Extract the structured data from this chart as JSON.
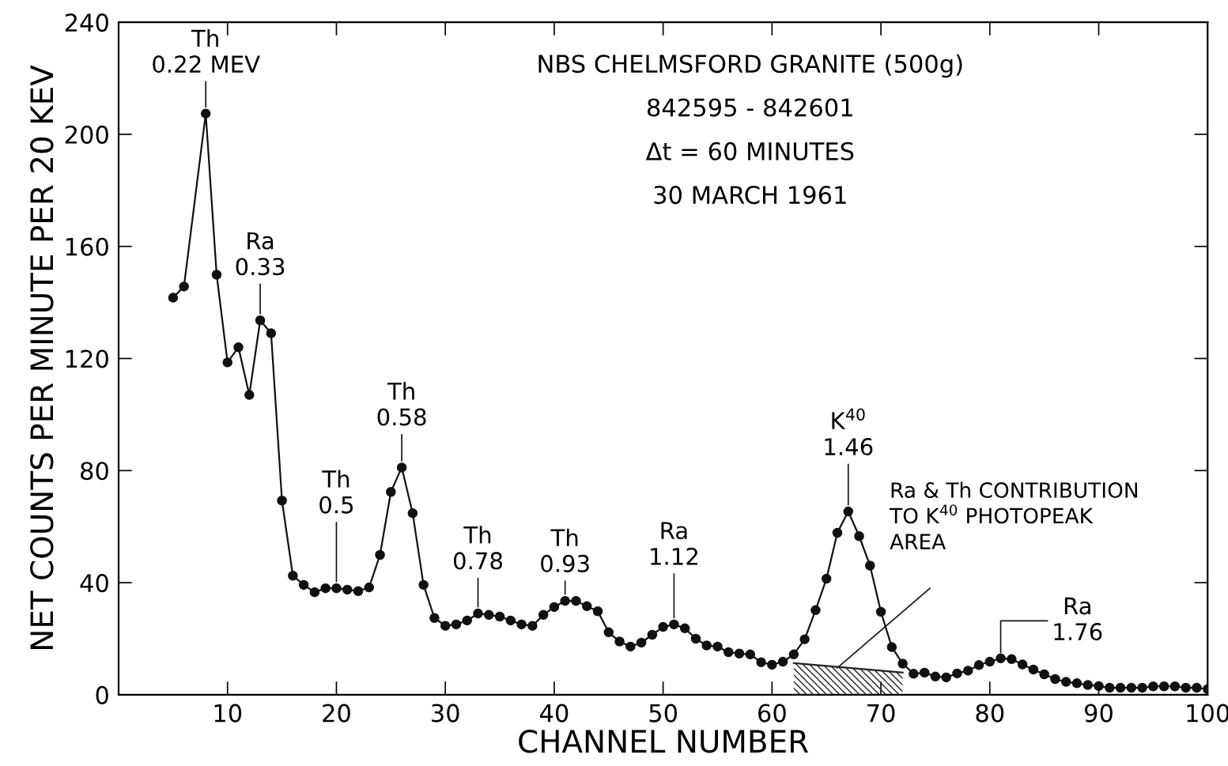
{
  "chart_data": {
    "type": "line",
    "xlabel": "CHANNEL NUMBER",
    "ylabel": "NET COUNTS PER MINUTE PER 20 KEV",
    "xlim": [
      0,
      100
    ],
    "ylim": [
      0,
      240
    ],
    "xticks": [
      10,
      20,
      30,
      40,
      50,
      60,
      70,
      80,
      90,
      100
    ],
    "yticks": [
      0,
      40,
      80,
      120,
      160,
      200,
      240
    ],
    "grid": false,
    "marker": "circle",
    "line_style": "solid",
    "series": [
      {
        "color": "#111111",
        "x": [
          5,
          6,
          8,
          9,
          10,
          11,
          12,
          13,
          14,
          15,
          16,
          17,
          18,
          19,
          20,
          21,
          22,
          23,
          24,
          25,
          26,
          27,
          28,
          29,
          30,
          31,
          32,
          33,
          34,
          35,
          36,
          37,
          38,
          39,
          40,
          41,
          42,
          43,
          44,
          45,
          46,
          47,
          48,
          49,
          50,
          51,
          52,
          53,
          54,
          55,
          56,
          57,
          58,
          59,
          60,
          61,
          62,
          63,
          64,
          65,
          66,
          67,
          68,
          69,
          70,
          71,
          72,
          73,
          74,
          75,
          76,
          77,
          78,
          79,
          80,
          81,
          82,
          83,
          84,
          85,
          86,
          87,
          88,
          89,
          90,
          91,
          92,
          93,
          94,
          95,
          96,
          97,
          98,
          99,
          100
        ],
        "values": [
          141.7,
          145.7,
          207.4,
          149.9,
          118.6,
          124,
          107,
          133.6,
          129,
          69.3,
          42.5,
          39.2,
          36.6,
          38,
          38,
          37.5,
          37,
          38.3,
          49.9,
          72.4,
          81.1,
          64.8,
          39.2,
          27.4,
          24.6,
          25.1,
          26.5,
          29,
          28.5,
          27.9,
          26.5,
          25.1,
          24.6,
          28.5,
          31.3,
          33.5,
          33.5,
          31.6,
          29.8,
          22.3,
          19,
          17.2,
          18.6,
          21.4,
          24.2,
          25.1,
          23.7,
          20,
          17.6,
          17.2,
          15.2,
          14.7,
          14.4,
          11.6,
          10.7,
          11.8,
          14.4,
          19.8,
          30.2,
          41.4,
          57.8,
          65.4,
          56.6,
          46.1,
          29.6,
          17,
          11.1,
          7.5,
          7.9,
          6.5,
          6.2,
          7.6,
          8.6,
          10.6,
          11.8,
          13,
          12.7,
          10.8,
          9,
          7.3,
          5.6,
          4.6,
          4.1,
          3.5,
          3.1,
          2.5,
          2.5,
          2.5,
          2.5,
          3,
          3,
          3,
          2.5,
          2.5,
          2
        ]
      },
      {
        "type": "area",
        "color": "#222222",
        "marker": "none",
        "x": [
          62,
          72
        ],
        "values": [
          11.3,
          7.9
        ]
      }
    ],
    "annotations": [
      "NBS CHELMSFORD GRANITE (500g)",
      "842595 - 842601",
      "Δt = 60 MINUTES",
      "30 MARCH 1961",
      {
        "text": "Th\n0.22 MEV",
        "x": 8,
        "y": 207.4
      },
      {
        "text": "Ra\n0.33",
        "x": 13,
        "y": 133.6
      },
      {
        "text": "Th\n0.5",
        "x": 20,
        "y": 38
      },
      {
        "text": "Th\n0.58",
        "x": 26,
        "y": 81.1
      },
      {
        "text": "Th\n0.78",
        "x": 33,
        "y": 29
      },
      {
        "text": "Th\n0.93",
        "x": 41,
        "y": 33.5
      },
      {
        "text": "Ra\n1.12",
        "x": 51,
        "y": 25.1
      },
      {
        "text": "K$^{40}$\n1.46",
        "x": 67,
        "y": 65.4
      },
      {
        "text": "Ra\n1.76",
        "x": 81,
        "y": 12.7
      },
      "Ra & Th CONTRIBUTION\nTO K$^{40}$ PHOTOPEAK\nAREA"
    ]
  }
}
